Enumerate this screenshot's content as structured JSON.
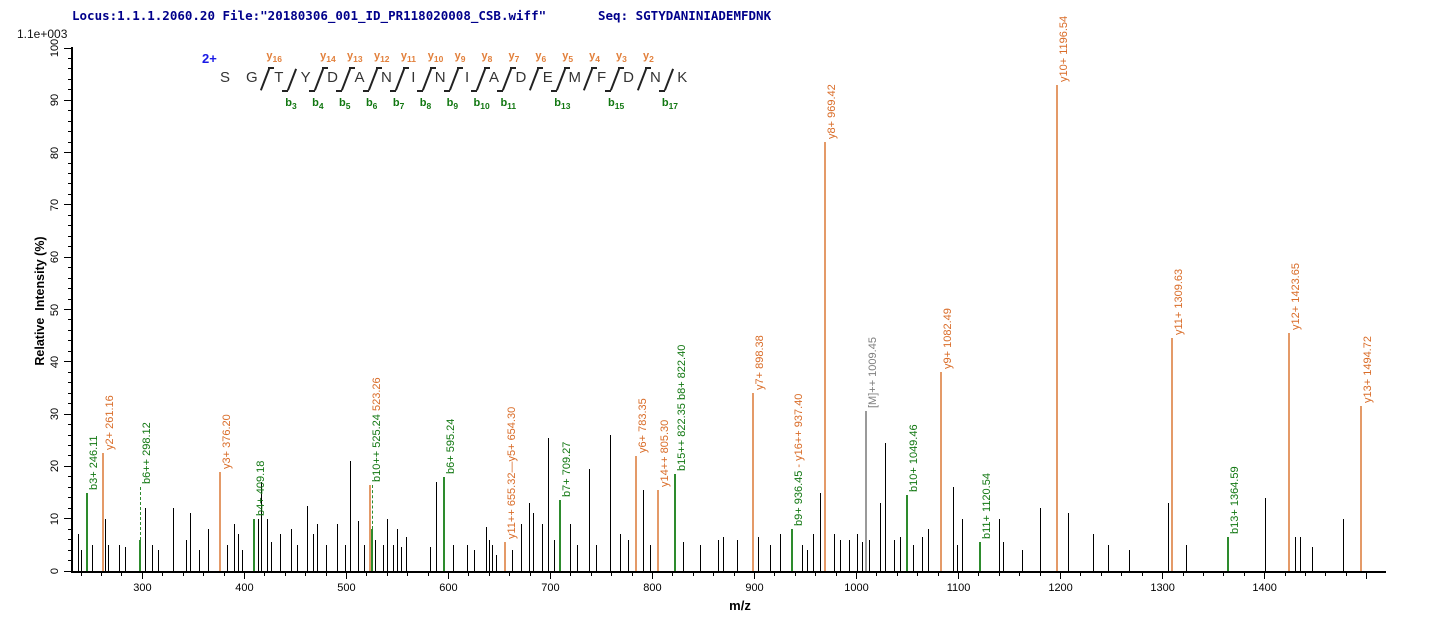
{
  "header": {
    "locus_file": "Locus:1.1.1.2060.20 File:\"20180306_001_ID_PR118020008_CSB.wiff\"",
    "seq_label": "Seq: SGTYDANINIADEMFDNK"
  },
  "plot": {
    "max_intensity_label": "1.1e+003",
    "ylabel": "Relative  Intensity (%)",
    "xlabel": "m/z"
  },
  "sequence": {
    "charge_label": "2+",
    "peptide": "SGTYDANINIADEMFDNK",
    "residues": [
      "S",
      "G",
      "T",
      "Y",
      "D",
      "A",
      "N",
      "I",
      "N",
      "I",
      "A",
      "D",
      "E",
      "M",
      "F",
      "D",
      "N",
      "K"
    ],
    "gaps": [
      {
        "y": null,
        "b": null
      },
      {
        "y": "y16",
        "b": null
      },
      {
        "y": null,
        "b": "b3"
      },
      {
        "y": "y14",
        "b": "b4"
      },
      {
        "y": "y13",
        "b": "b5"
      },
      {
        "y": "y12",
        "b": "b6"
      },
      {
        "y": "y11",
        "b": "b7"
      },
      {
        "y": "y10",
        "b": "b8"
      },
      {
        "y": "y9",
        "b": "b9"
      },
      {
        "y": "y8",
        "b": "b10"
      },
      {
        "y": "y7",
        "b": "b11"
      },
      {
        "y": "y6",
        "b": null
      },
      {
        "y": "y5",
        "b": "b13"
      },
      {
        "y": "y4",
        "b": null
      },
      {
        "y": "y3",
        "b": "b15"
      },
      {
        "y": "y2",
        "b": null
      },
      {
        "y": null,
        "b": "b17"
      }
    ]
  },
  "colors": {
    "orange_text": "#d96c28",
    "orange_line": "#e49a68",
    "green_text": "#117711",
    "green_line": "#2d8b2d",
    "gray_text": "#7f7f7f",
    "gray_line": "#9a9a9a",
    "black_line": "#000000",
    "header_navy": "#00008b",
    "charge_blue": "#1a1ae6"
  },
  "chart_data": {
    "type": "bar",
    "subtype": "ms2-stick-spectrum",
    "title": "MS/MS spectrum of SGTYDANINIADEMFDNK (2+)",
    "xlabel": "m/z",
    "ylabel": "Relative  Intensity (%)",
    "xlim": [
      231,
      1518
    ],
    "ylim": [
      0,
      100
    ],
    "x_major_tick_step": 100,
    "x_minor_tick_step": 20,
    "x_labeled_ticks": [
      300,
      400,
      500,
      600,
      700,
      800,
      900,
      1000,
      1100,
      1200,
      1300,
      1400
    ],
    "y_major_tick_step": 10,
    "y_minor_tick_step": 2,
    "grid": false,
    "legend": "none",
    "base_peak_intensity": "1.1e+003",
    "precursor_charge": "2+",
    "annotated_peaks": [
      {
        "ion": "b3+",
        "mz": 246.11,
        "pct": 15,
        "color": "green",
        "label": {
          "parts": [
            [
              "b3+ 246.11",
              "green"
            ]
          ]
        }
      },
      {
        "ion": "y2+",
        "mz": 261.16,
        "pct": 22.5,
        "color": "orange",
        "label": {
          "parts": [
            [
              "y2+ 261.16",
              "orange"
            ]
          ]
        }
      },
      {
        "ion": "b6++",
        "mz": 298.12,
        "pct": 6,
        "color": "green",
        "leader_to": 16,
        "label": {
          "base": 16,
          "parts": [
            [
              "b6++ 298.12",
              "green"
            ]
          ]
        }
      },
      {
        "ion": "y3+",
        "mz": 376.2,
        "pct": 19,
        "color": "orange",
        "label": {
          "parts": [
            [
              "y3+ 376.20",
              "orange"
            ]
          ]
        }
      },
      {
        "ion": "b4+",
        "mz": 409.18,
        "pct": 10,
        "color": "green",
        "label": {
          "parts": [
            [
              "b4+ 409.18",
              "green"
            ]
          ]
        }
      },
      {
        "ion": "y4+",
        "mz": 523.26,
        "pct": 16.5,
        "color": "orange",
        "label": {
          "base": 16.5,
          "parts": [
            [
              "b10++ 525.24",
              "green"
            ],
            [
              " 523.26",
              "orange"
            ]
          ]
        }
      },
      {
        "ion": "b10++",
        "mz": 525.24,
        "pct": 8,
        "color": "green",
        "leader_to": 16.5
      },
      {
        "ion": "b6+",
        "mz": 595.24,
        "pct": 18,
        "color": "green",
        "label": {
          "parts": [
            [
              "b6+ 595.24",
              "green"
            ]
          ]
        }
      },
      {
        "ion": "y11++ / y5+",
        "mz": 655.32,
        "pct": 5.5,
        "color": "orange",
        "label": {
          "parts": [
            [
              "y11++ 655.32",
              "orange"
            ],
            [
              "—y5+ 654.30",
              "orange"
            ]
          ]
        }
      },
      {
        "ion": "b7+",
        "mz": 709.27,
        "pct": 13.5,
        "color": "green",
        "label": {
          "parts": [
            [
              "b7+ 709.27",
              "green"
            ]
          ]
        }
      },
      {
        "ion": "y6+",
        "mz": 783.35,
        "pct": 22,
        "color": "orange",
        "label": {
          "parts": [
            [
              "y6+ 783.35",
              "orange"
            ]
          ]
        }
      },
      {
        "ion": "y14++",
        "mz": 805.3,
        "pct": 15.5,
        "color": "orange",
        "label": {
          "parts": [
            [
              "y14++ 805.30",
              "orange"
            ]
          ]
        }
      },
      {
        "ion": "b8+ / b15++",
        "mz": 822.4,
        "pct": 18.5,
        "color": "green",
        "label": {
          "parts": [
            [
              "b15++ 822.35 ",
              "green"
            ],
            [
              "b8+ 822.40",
              "green"
            ]
          ]
        }
      },
      {
        "ion": "y7+",
        "mz": 898.38,
        "pct": 34,
        "color": "orange",
        "label": {
          "parts": [
            [
              "y7+ 898.38",
              "orange"
            ]
          ]
        }
      },
      {
        "ion": "b9+ / y16++",
        "mz": 936.45,
        "pct": 8,
        "color": "green",
        "label": {
          "parts": [
            [
              "b9+ 936.45 ",
              "green"
            ],
            [
              "- y16++ 937.40",
              "orange"
            ]
          ]
        }
      },
      {
        "ion": "y8+",
        "mz": 969.42,
        "pct": 82,
        "color": "orange",
        "label": {
          "parts": [
            [
              "y8+ 969.42",
              "orange"
            ]
          ]
        }
      },
      {
        "ion": "[M]++",
        "mz": 1009.45,
        "pct": 30.5,
        "color": "gray",
        "label": {
          "parts": [
            [
              "[M]++ 1009.45",
              "gray"
            ]
          ]
        }
      },
      {
        "ion": "b10+",
        "mz": 1049.46,
        "pct": 14.5,
        "color": "green",
        "label": {
          "parts": [
            [
              "b10+ 1049.46",
              "green"
            ]
          ]
        }
      },
      {
        "ion": "y9+",
        "mz": 1082.49,
        "pct": 38,
        "color": "orange",
        "label": {
          "parts": [
            [
              "y9+ 1082.49",
              "orange"
            ]
          ]
        }
      },
      {
        "ion": "b11+",
        "mz": 1120.54,
        "pct": 5.5,
        "color": "green",
        "label": {
          "parts": [
            [
              "b11+ 1120.54",
              "green"
            ]
          ]
        }
      },
      {
        "ion": "y10+",
        "mz": 1196.54,
        "pct": 93,
        "color": "orange",
        "label": {
          "parts": [
            [
              "y10+ 1196.54",
              "orange"
            ]
          ]
        }
      },
      {
        "ion": "y11+",
        "mz": 1309.63,
        "pct": 44.5,
        "color": "orange",
        "label": {
          "parts": [
            [
              "y11+ 1309.63",
              "orange"
            ]
          ]
        }
      },
      {
        "ion": "b13+",
        "mz": 1364.59,
        "pct": 6.5,
        "color": "green",
        "label": {
          "parts": [
            [
              "b13+ 1364.59",
              "green"
            ]
          ]
        }
      },
      {
        "ion": "y12+",
        "mz": 1423.65,
        "pct": 45.5,
        "color": "orange",
        "label": {
          "parts": [
            [
              "y12+ 1423.65",
              "orange"
            ]
          ]
        }
      },
      {
        "ion": "y13+",
        "mz": 1494.72,
        "pct": 31.5,
        "color": "orange",
        "label": {
          "parts": [
            [
              "y13+ 1494.72",
              "orange"
            ]
          ]
        }
      }
    ],
    "unannotated_peaks": [
      [
        237,
        7
      ],
      [
        240.5,
        4
      ],
      [
        251,
        5
      ],
      [
        264,
        10
      ],
      [
        267,
        5
      ],
      [
        278,
        5
      ],
      [
        283,
        4.5
      ],
      [
        303,
        12
      ],
      [
        310,
        5
      ],
      [
        316,
        4
      ],
      [
        330,
        12
      ],
      [
        343,
        6
      ],
      [
        347,
        11
      ],
      [
        356,
        4
      ],
      [
        365,
        8
      ],
      [
        383,
        5
      ],
      [
        390,
        9
      ],
      [
        394,
        7
      ],
      [
        398,
        4
      ],
      [
        414,
        10
      ],
      [
        416.5,
        17
      ],
      [
        423,
        10
      ],
      [
        427,
        5.5
      ],
      [
        435,
        7
      ],
      [
        446,
        8
      ],
      [
        452,
        5
      ],
      [
        462,
        12.5
      ],
      [
        468,
        7
      ],
      [
        472,
        9
      ],
      [
        480,
        5
      ],
      [
        491,
        9
      ],
      [
        499,
        5
      ],
      [
        504,
        21
      ],
      [
        512,
        9.5
      ],
      [
        518,
        5
      ],
      [
        528,
        6
      ],
      [
        536,
        5
      ],
      [
        540,
        10
      ],
      [
        546,
        5
      ],
      [
        550,
        8
      ],
      [
        554,
        4.5
      ],
      [
        559,
        6.5
      ],
      [
        582,
        4.5
      ],
      [
        588,
        17
      ],
      [
        605,
        5
      ],
      [
        619,
        5
      ],
      [
        626,
        4
      ],
      [
        637,
        8.5
      ],
      [
        640,
        6
      ],
      [
        643.5,
        5
      ],
      [
        647,
        3
      ],
      [
        663,
        4
      ],
      [
        672,
        9
      ],
      [
        679,
        13
      ],
      [
        683,
        11
      ],
      [
        692,
        9
      ],
      [
        698,
        25.5
      ],
      [
        704,
        6
      ],
      [
        720,
        9
      ],
      [
        726,
        5
      ],
      [
        738,
        19.5
      ],
      [
        745,
        5
      ],
      [
        759,
        26
      ],
      [
        769,
        7
      ],
      [
        776,
        6
      ],
      [
        791,
        15.5
      ],
      [
        798,
        5
      ],
      [
        830,
        5.5
      ],
      [
        847,
        5
      ],
      [
        865,
        6
      ],
      [
        870,
        6.5
      ],
      [
        883,
        6
      ],
      [
        904,
        6.5
      ],
      [
        916,
        5
      ],
      [
        925,
        7
      ],
      [
        947,
        5
      ],
      [
        952,
        4
      ],
      [
        958,
        7
      ],
      [
        965,
        15
      ],
      [
        978,
        7
      ],
      [
        984,
        6
      ],
      [
        993,
        6
      ],
      [
        1001,
        7
      ],
      [
        1006,
        5.5
      ],
      [
        1013,
        6
      ],
      [
        1023,
        13
      ],
      [
        1028,
        24.5
      ],
      [
        1037,
        6
      ],
      [
        1043,
        6.5
      ],
      [
        1056,
        5
      ],
      [
        1065,
        6.5
      ],
      [
        1071,
        8
      ],
      [
        1095,
        16
      ],
      [
        1099,
        5
      ],
      [
        1104,
        10
      ],
      [
        1140,
        10
      ],
      [
        1144,
        5.5
      ],
      [
        1163,
        4
      ],
      [
        1180,
        12
      ],
      [
        1208,
        11
      ],
      [
        1232,
        7
      ],
      [
        1247,
        5
      ],
      [
        1268,
        4
      ],
      [
        1306,
        13
      ],
      [
        1323,
        5
      ],
      [
        1401,
        14
      ],
      [
        1430,
        6.5
      ],
      [
        1435,
        6.5
      ],
      [
        1447,
        4.5
      ],
      [
        1477,
        10
      ]
    ]
  }
}
